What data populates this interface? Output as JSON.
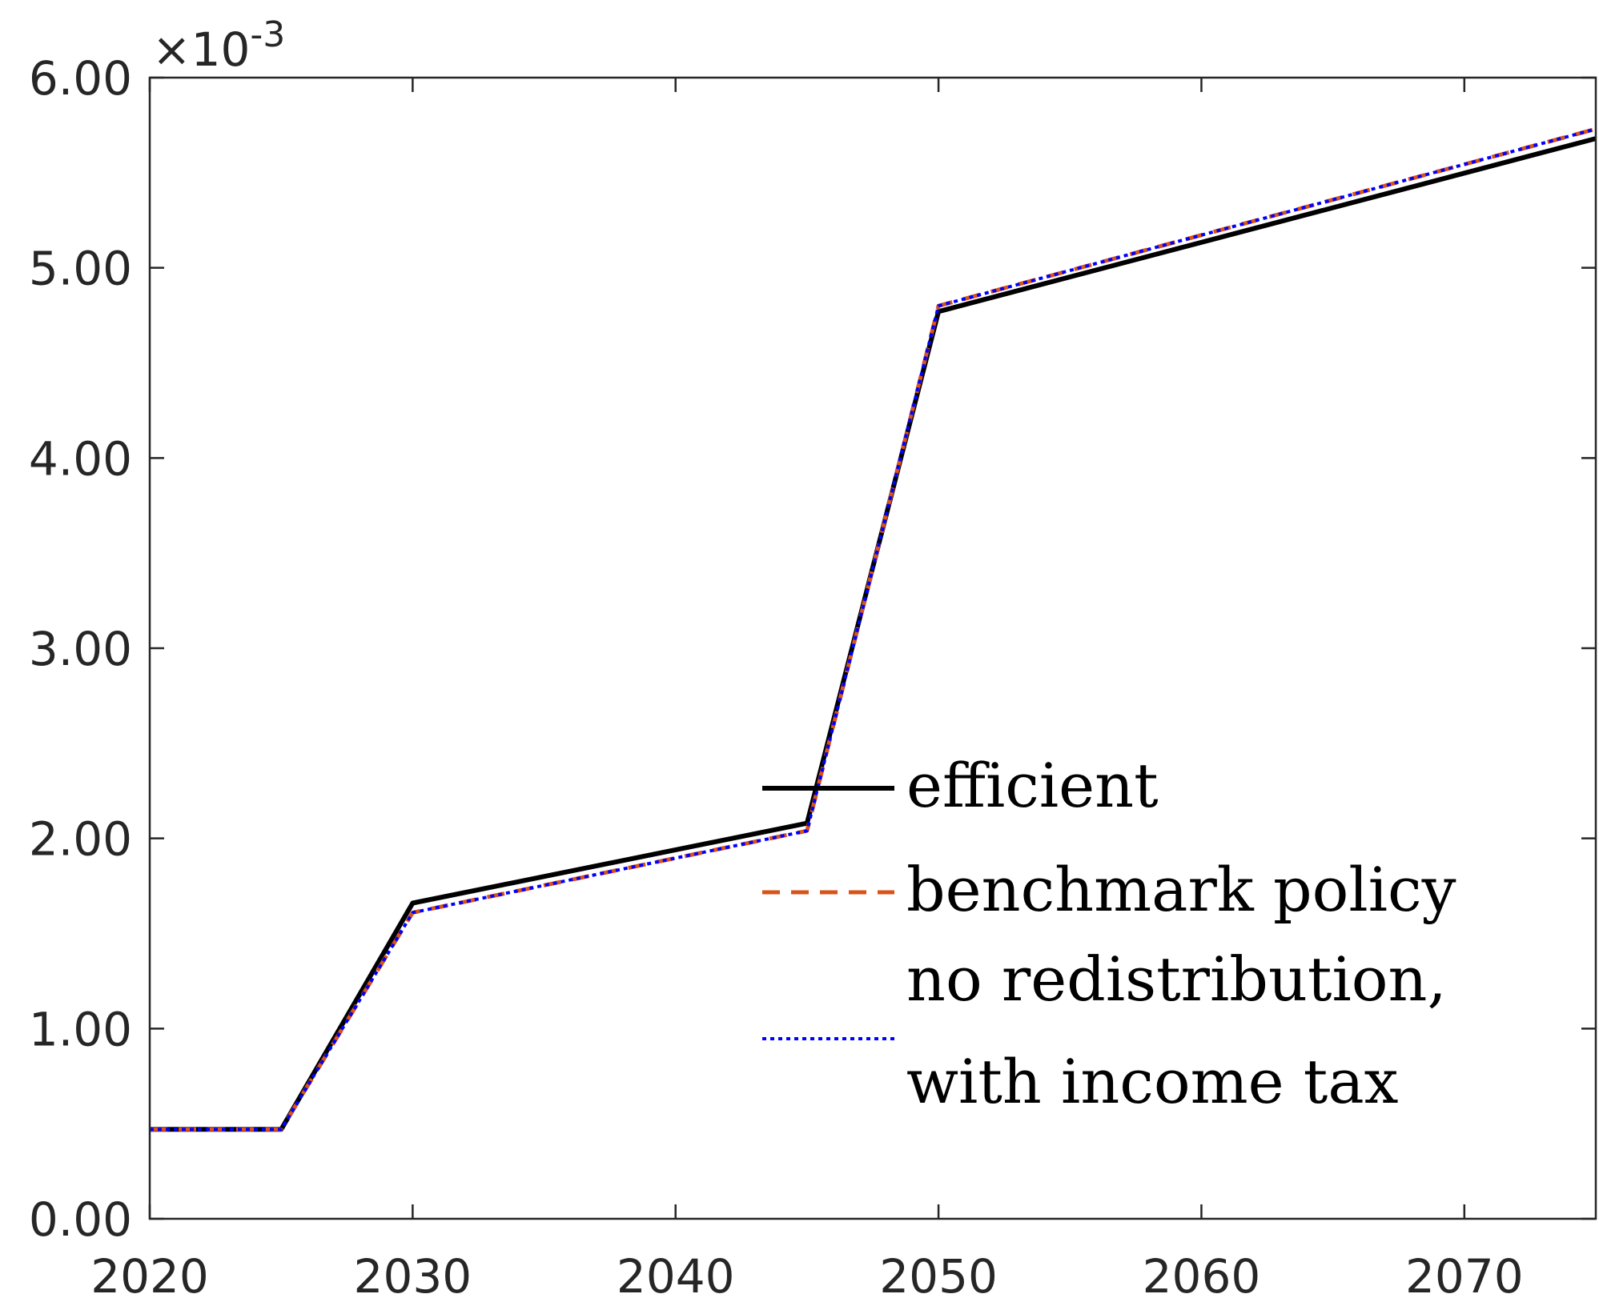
{
  "chart_data": {
    "type": "line",
    "title": "",
    "xlabel": "",
    "ylabel": "",
    "xlim": [
      2020,
      2075
    ],
    "ylim": [
      0,
      6
    ],
    "y_multiplier_label": {
      "base": "×10",
      "exponent": "-3"
    },
    "x_ticks": [
      2020,
      2030,
      2040,
      2050,
      2060,
      2070
    ],
    "x_tick_labels": [
      "2020",
      "2030",
      "2040",
      "2050",
      "2060",
      "2070"
    ],
    "y_ticks": [
      0,
      1,
      2,
      3,
      4,
      5,
      6
    ],
    "y_tick_labels": [
      "0.00",
      "1.00",
      "2.00",
      "3.00",
      "4.00",
      "5.00",
      "6.00"
    ],
    "grid": false,
    "legend_position": "lower-right",
    "x": [
      2020,
      2025,
      2030,
      2045,
      2050,
      2075
    ],
    "series": [
      {
        "name": "efficient",
        "color": "#000000",
        "style": "solid",
        "values": [
          0.47,
          0.47,
          1.66,
          2.08,
          4.77,
          5.68
        ]
      },
      {
        "name": "benchmark policy",
        "color": "#D95319",
        "style": "dashed",
        "values": [
          0.47,
          0.47,
          1.61,
          2.04,
          4.8,
          5.73
        ]
      },
      {
        "name": "no redistribution, with income tax",
        "legend_lines": [
          "no redistribution,",
          "with income tax"
        ],
        "color": "#0000FF",
        "style": "dotted",
        "values": [
          0.47,
          0.47,
          1.61,
          2.04,
          4.8,
          5.73
        ]
      }
    ]
  }
}
